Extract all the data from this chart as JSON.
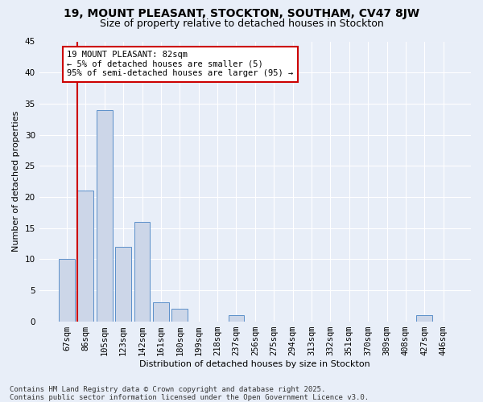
{
  "title": "19, MOUNT PLEASANT, STOCKTON, SOUTHAM, CV47 8JW",
  "subtitle": "Size of property relative to detached houses in Stockton",
  "xlabel": "Distribution of detached houses by size in Stockton",
  "ylabel": "Number of detached properties",
  "categories": [
    "67sqm",
    "86sqm",
    "105sqm",
    "123sqm",
    "142sqm",
    "161sqm",
    "180sqm",
    "199sqm",
    "218sqm",
    "237sqm",
    "256sqm",
    "275sqm",
    "294sqm",
    "313sqm",
    "332sqm",
    "351sqm",
    "370sqm",
    "389sqm",
    "408sqm",
    "427sqm",
    "446sqm"
  ],
  "values": [
    10,
    21,
    34,
    12,
    16,
    3,
    2,
    0,
    0,
    1,
    0,
    0,
    0,
    0,
    0,
    0,
    0,
    0,
    0,
    1,
    0
  ],
  "bar_color": "#ccd6e8",
  "bar_edge_color": "#5b8fc9",
  "background_color": "#e8eef8",
  "grid_color": "#ffffff",
  "vline_color": "#cc0000",
  "annotation_text": "19 MOUNT PLEASANT: 82sqm\n← 5% of detached houses are smaller (5)\n95% of semi-detached houses are larger (95) →",
  "annotation_box_color": "#ffffff",
  "annotation_box_edge": "#cc0000",
  "footer_line1": "Contains HM Land Registry data © Crown copyright and database right 2025.",
  "footer_line2": "Contains public sector information licensed under the Open Government Licence v3.0.",
  "ylim": [
    0,
    45
  ],
  "yticks": [
    0,
    5,
    10,
    15,
    20,
    25,
    30,
    35,
    40,
    45
  ],
  "title_fontsize": 10,
  "subtitle_fontsize": 9,
  "axis_label_fontsize": 8,
  "tick_fontsize": 7.5,
  "footer_fontsize": 6.5,
  "annot_fontsize": 7.5
}
